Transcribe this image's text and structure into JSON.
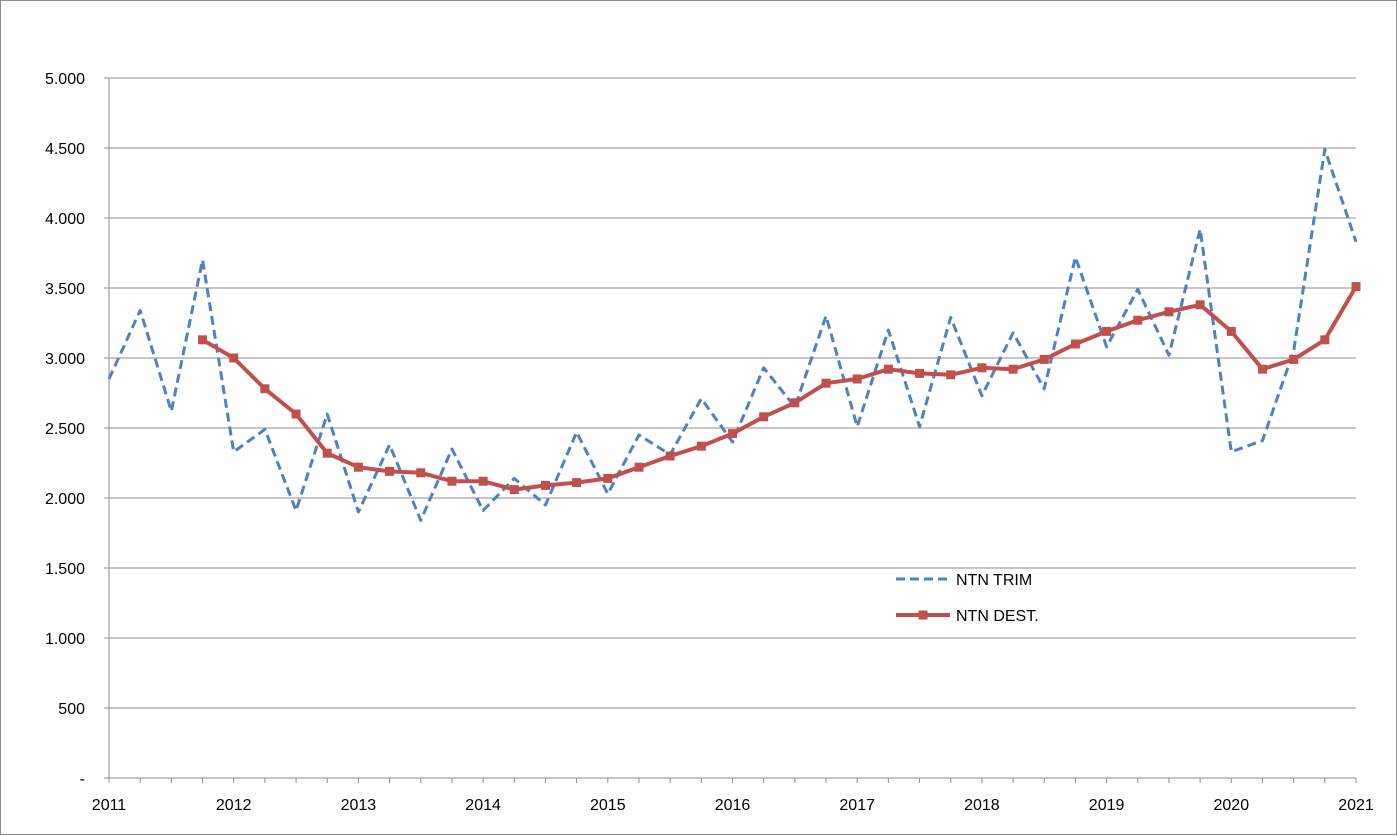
{
  "chart_data": {
    "type": "line",
    "title": "",
    "xlabel": "",
    "ylabel": "",
    "x_tick_labels": [
      "2011",
      "2012",
      "2013",
      "2014",
      "2015",
      "2016",
      "2017",
      "2018",
      "2019",
      "2020",
      "2021"
    ],
    "y_tick_labels": [
      "-",
      "500",
      "1.000",
      "1.500",
      "2.000",
      "2.500",
      "3.000",
      "3.500",
      "4.000",
      "4.500",
      "5.000"
    ],
    "y_ticks": [
      0,
      500,
      1000,
      1500,
      2000,
      2500,
      3000,
      3500,
      4000,
      4500,
      5000
    ],
    "ylim": [
      0,
      5000
    ],
    "xlim": [
      2011,
      2021
    ],
    "grid": "horizontal",
    "legend_position": "inside-bottom-right",
    "series": [
      {
        "name": "NTN TRIM",
        "style": "dashed",
        "color": "#4F81BD",
        "x": [
          2011,
          2011.25,
          2011.5,
          2011.75,
          2012,
          2012.25,
          2012.5,
          2012.75,
          2013,
          2013.25,
          2013.5,
          2013.75,
          2014,
          2014.25,
          2014.5,
          2014.75,
          2015,
          2015.25,
          2015.5,
          2015.75,
          2016,
          2016.25,
          2016.5,
          2016.75,
          2017,
          2017.25,
          2017.5,
          2017.75,
          2018,
          2018.25,
          2018.5,
          2018.75,
          2019,
          2019.25,
          2019.5,
          2019.75,
          2020,
          2020.25,
          2020.5,
          2020.75,
          2021
        ],
        "values": [
          2850,
          3340,
          2620,
          3700,
          2330,
          2490,
          1910,
          2600,
          1900,
          2380,
          1840,
          2350,
          1910,
          2140,
          1950,
          2470,
          2030,
          2450,
          2310,
          2710,
          2400,
          2930,
          2650,
          3300,
          2510,
          3200,
          2510,
          3290,
          2730,
          3180,
          2780,
          3720,
          3080,
          3490,
          3020,
          3920,
          2330,
          2410,
          3050,
          4490,
          3830
        ]
      },
      {
        "name": "NTN DEST.",
        "style": "solid-markers",
        "color": "#C0504D",
        "x": [
          2011.75,
          2012,
          2012.25,
          2012.5,
          2012.75,
          2013,
          2013.25,
          2013.5,
          2013.75,
          2014,
          2014.25,
          2014.5,
          2014.75,
          2015,
          2015.25,
          2015.5,
          2015.75,
          2016,
          2016.25,
          2016.5,
          2016.75,
          2017,
          2017.25,
          2017.5,
          2017.75,
          2018,
          2018.25,
          2018.5,
          2018.75,
          2019,
          2019.25,
          2019.5,
          2019.75,
          2020,
          2020.25,
          2020.5,
          2020.75,
          2021
        ],
        "values": [
          3130,
          3000,
          2780,
          2600,
          2320,
          2220,
          2190,
          2180,
          2120,
          2120,
          2060,
          2090,
          2110,
          2140,
          2220,
          2300,
          2370,
          2460,
          2580,
          2680,
          2820,
          2850,
          2920,
          2890,
          2880,
          2930,
          2920,
          2990,
          3100,
          3190,
          3270,
          3330,
          3380,
          3190,
          2920,
          2990,
          3130,
          3510
        ]
      }
    ]
  }
}
